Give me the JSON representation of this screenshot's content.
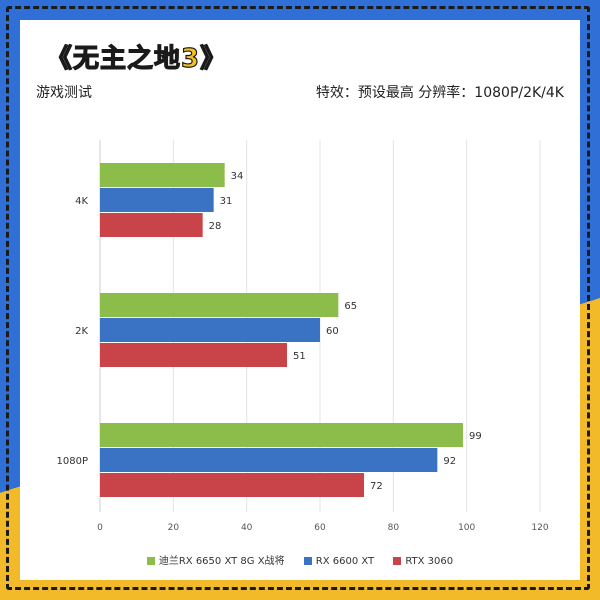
{
  "header": {
    "title": "《无主之地3》",
    "subtitle_left": "游戏测试",
    "subtitle_right": "特效：预设最高  分辨率：1080P/2K/4K"
  },
  "colors": {
    "green": "#8cbd4a",
    "blue": "#3b73c4",
    "red": "#c94448",
    "frame_blue": "#2f6fd6",
    "frame_yellow": "#f2b928",
    "title_yellow": "#f3c21f"
  },
  "chart_data": {
    "type": "bar",
    "orientation": "horizontal",
    "title": "",
    "xlabel": "",
    "ylabel": "",
    "categories": [
      "4K",
      "2K",
      "1080P"
    ],
    "series": [
      {
        "name": "迪兰RX 6650 XT 8G X战将",
        "values": [
          34,
          65,
          99
        ]
      },
      {
        "name": "RX 6600 XT",
        "values": [
          31,
          60,
          92
        ]
      },
      {
        "name": "RTX 3060",
        "values": [
          28,
          51,
          72
        ]
      }
    ],
    "xlim": [
      0,
      120
    ],
    "xticks": [
      "0",
      "20",
      "40",
      "60",
      "80",
      "100",
      "120"
    ],
    "grid": true,
    "legend_position": "bottom"
  }
}
